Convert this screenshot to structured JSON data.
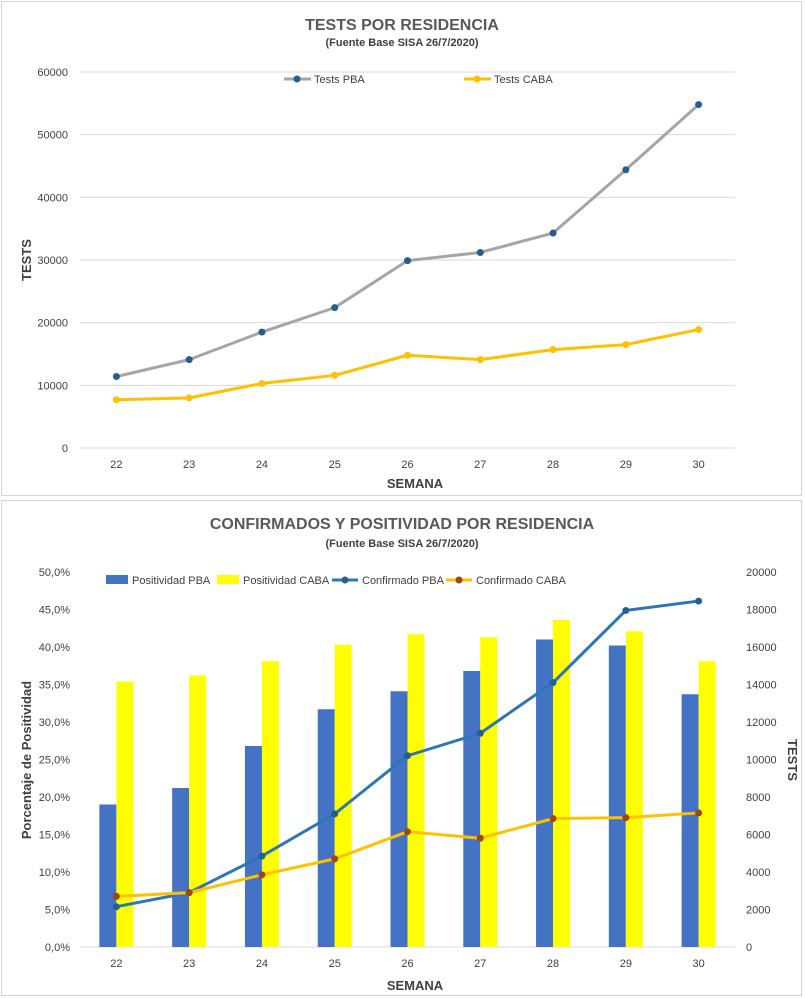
{
  "chart_data": [
    {
      "type": "line",
      "title": "TESTS POR RESIDENCIA",
      "subtitle": "(Fuente Base SISA 26/7/2020)",
      "xlabel": "SEMANA",
      "ylabel": "TESTS",
      "categories": [
        "22",
        "23",
        "24",
        "25",
        "26",
        "27",
        "28",
        "29",
        "30"
      ],
      "ylim": [
        0,
        60000
      ],
      "yticks": [
        "0",
        "10000",
        "20000",
        "30000",
        "40000",
        "50000",
        "60000"
      ],
      "grid": true,
      "legend": "top",
      "series": [
        {
          "name": "Tests PBA",
          "color": "#A5A5A5",
          "marker": "#255E91",
          "values": [
            11400,
            14100,
            18500,
            22400,
            29900,
            31200,
            34300,
            44400,
            54800
          ]
        },
        {
          "name": "Tests CABA",
          "color": "#FFC000",
          "marker": "#FFC000",
          "values": [
            7700,
            8000,
            10300,
            11600,
            14800,
            14100,
            15700,
            16500,
            18900
          ]
        }
      ]
    },
    {
      "type": "bar",
      "title": "CONFIRMADOS Y POSITIVIDAD POR RESIDENCIA",
      "subtitle": "(Fuente Base SISA 26/7/2020)",
      "xlabel": "SEMANA",
      "ylabel": "Porcentaje de Positividad",
      "y2label": "TESTS",
      "categories": [
        "22",
        "23",
        "24",
        "25",
        "26",
        "27",
        "28",
        "29",
        "30"
      ],
      "ylim": [
        0,
        50
      ],
      "yticks": [
        "0,0%",
        "5,0%",
        "10,0%",
        "15,0%",
        "20,0%",
        "25,0%",
        "30,0%",
        "35,0%",
        "40,0%",
        "45,0%",
        "50,0%"
      ],
      "y2lim": [
        0,
        20000
      ],
      "y2ticks": [
        "0",
        "2000",
        "4000",
        "6000",
        "8000",
        "10000",
        "12000",
        "14000",
        "16000",
        "18000",
        "20000"
      ],
      "grid": false,
      "legend": "top",
      "bar_series": [
        {
          "name": "Positividad PBA",
          "color": "#4472C4",
          "values": [
            19.0,
            21.2,
            26.8,
            31.7,
            34.1,
            36.8,
            41.0,
            40.2,
            33.7
          ]
        },
        {
          "name": "Positividad CABA",
          "color": "#FFFF00",
          "values": [
            35.4,
            36.2,
            38.1,
            40.3,
            41.7,
            41.3,
            43.6,
            42.1,
            38.1
          ]
        }
      ],
      "line_series": [
        {
          "name": "Confirmado PBA",
          "color": "#2E75B6",
          "marker": "#255E91",
          "values": [
            2150,
            2900,
            4850,
            7100,
            10200,
            11400,
            14100,
            17950,
            18450
          ]
        },
        {
          "name": "Confirmado CABA",
          "color": "#FFC000",
          "marker": "#9E480E",
          "values": [
            2700,
            2900,
            3850,
            4700,
            6150,
            5800,
            6850,
            6900,
            7150
          ]
        }
      ]
    }
  ]
}
